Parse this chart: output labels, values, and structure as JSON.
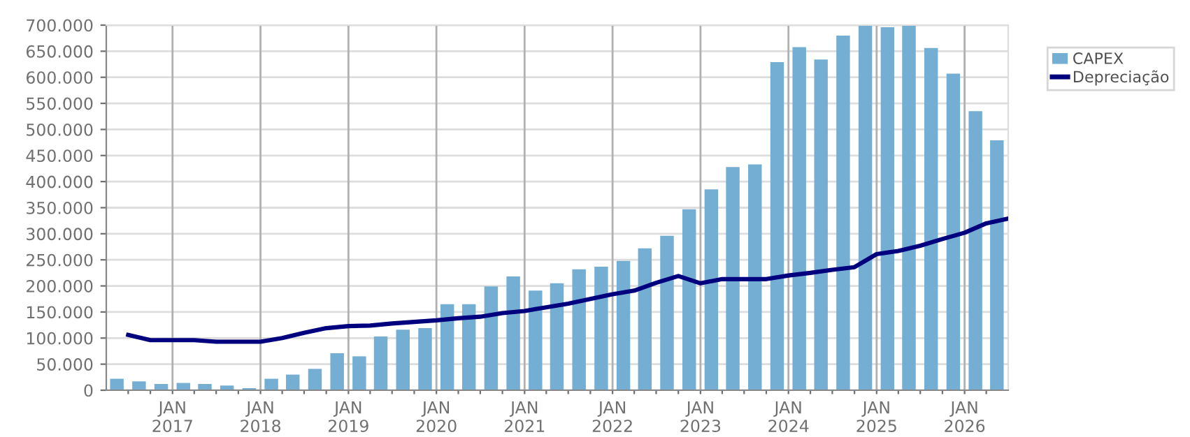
{
  "chart_data": {
    "type": "bar",
    "series": [
      {
        "name": "CAPEX",
        "color": "#74afd3",
        "x": [
          "2016-05-15",
          "2016-08-15",
          "2016-11-15",
          "2017-02-15",
          "2017-05-15",
          "2017-08-15",
          "2017-11-15",
          "2018-02-15",
          "2018-05-15",
          "2018-08-15",
          "2018-11-15",
          "2019-02-15",
          "2019-05-15",
          "2019-08-15",
          "2019-11-15",
          "2020-02-15",
          "2020-05-15",
          "2020-08-15",
          "2020-11-15",
          "2021-02-15",
          "2021-05-15",
          "2021-08-15",
          "2021-11-15",
          "2022-02-15",
          "2022-05-15",
          "2022-08-15",
          "2022-11-15",
          "2023-02-15",
          "2023-05-15",
          "2023-08-15",
          "2023-11-15",
          "2024-02-15",
          "2024-05-15",
          "2024-08-15",
          "2024-11-15",
          "2025-02-15",
          "2025-05-15",
          "2025-08-15",
          "2025-11-15",
          "2026-02-15",
          "2026-05-15"
        ],
        "values": [
          22000,
          17000,
          12000,
          14000,
          12000,
          9000,
          4000,
          22000,
          30000,
          41000,
          71000,
          65000,
          103000,
          116000,
          119000,
          165000,
          165000,
          199000,
          218000,
          191000,
          205000,
          232000,
          237000,
          248000,
          272000,
          296000,
          347000,
          385000,
          428000,
          433000,
          629000,
          658000,
          634000,
          680000,
          699000,
          696000,
          700000,
          656000,
          607000,
          535000,
          479000
        ]
      },
      {
        "name": "Depreciação",
        "type": "line",
        "color": "#00007f",
        "x": [
          "2016-07-01",
          "2016-10-01",
          "2017-01-01",
          "2017-04-01",
          "2017-07-01",
          "2017-10-01",
          "2018-01-01",
          "2018-04-01",
          "2018-07-01",
          "2018-10-01",
          "2019-01-01",
          "2019-04-01",
          "2019-07-01",
          "2019-10-01",
          "2020-01-01",
          "2020-04-01",
          "2020-07-01",
          "2020-10-01",
          "2021-01-01",
          "2021-04-01",
          "2021-07-01",
          "2021-10-01",
          "2022-01-01",
          "2022-04-01",
          "2022-07-01",
          "2022-10-01",
          "2023-01-01",
          "2023-04-01",
          "2023-07-01",
          "2023-10-01",
          "2024-01-01",
          "2024-04-01",
          "2024-07-01",
          "2024-10-01",
          "2025-01-01",
          "2025-04-01",
          "2025-07-01",
          "2025-10-01",
          "2026-01-01",
          "2026-04-01",
          "2026-07-01"
        ],
        "values": [
          106000,
          96000,
          96000,
          96000,
          93000,
          93000,
          93000,
          100000,
          110000,
          119000,
          123000,
          124000,
          128000,
          131000,
          134000,
          138000,
          141000,
          148000,
          152000,
          159000,
          166000,
          175000,
          184000,
          191000,
          206000,
          219000,
          205000,
          213000,
          213000,
          213000,
          220000,
          225000,
          231000,
          236000,
          261000,
          267000,
          277000,
          290000,
          302000,
          320000,
          329000
        ]
      }
    ],
    "xlim": [
      "2016-04-01",
      "2026-07-01"
    ],
    "xticks": [
      {
        "value": "2016-07-01",
        "label": null
      },
      {
        "value": "2016-10-01",
        "label": null
      },
      {
        "value": "2017-01-01",
        "label": "JAN\n2017"
      },
      {
        "value": "2017-04-01",
        "label": null
      },
      {
        "value": "2017-07-01",
        "label": null
      },
      {
        "value": "2017-10-01",
        "label": null
      },
      {
        "value": "2018-01-01",
        "label": "JAN\n2018"
      },
      {
        "value": "2018-04-01",
        "label": null
      },
      {
        "value": "2018-07-01",
        "label": null
      },
      {
        "value": "2018-10-01",
        "label": null
      },
      {
        "value": "2019-01-01",
        "label": "JAN\n2019"
      },
      {
        "value": "2019-04-01",
        "label": null
      },
      {
        "value": "2019-07-01",
        "label": null
      },
      {
        "value": "2019-10-01",
        "label": null
      },
      {
        "value": "2020-01-01",
        "label": "JAN\n2020"
      },
      {
        "value": "2020-04-01",
        "label": null
      },
      {
        "value": "2020-07-01",
        "label": null
      },
      {
        "value": "2020-10-01",
        "label": null
      },
      {
        "value": "2021-01-01",
        "label": "JAN\n2021"
      },
      {
        "value": "2021-04-01",
        "label": null
      },
      {
        "value": "2021-07-01",
        "label": null
      },
      {
        "value": "2021-10-01",
        "label": null
      },
      {
        "value": "2022-01-01",
        "label": "JAN\n2022"
      },
      {
        "value": "2022-04-01",
        "label": null
      },
      {
        "value": "2022-07-01",
        "label": null
      },
      {
        "value": "2022-10-01",
        "label": null
      },
      {
        "value": "2023-01-01",
        "label": "JAN\n2023"
      },
      {
        "value": "2023-04-01",
        "label": null
      },
      {
        "value": "2023-07-01",
        "label": null
      },
      {
        "value": "2023-10-01",
        "label": null
      },
      {
        "value": "2024-01-01",
        "label": "JAN\n2024"
      },
      {
        "value": "2024-04-01",
        "label": null
      },
      {
        "value": "2024-07-01",
        "label": null
      },
      {
        "value": "2024-10-01",
        "label": null
      },
      {
        "value": "2025-01-01",
        "label": "JAN\n2025"
      },
      {
        "value": "2025-04-01",
        "label": null
      },
      {
        "value": "2025-07-01",
        "label": null
      },
      {
        "value": "2025-10-01",
        "label": null
      },
      {
        "value": "2026-01-01",
        "label": "JAN\n2026"
      },
      {
        "value": "2026-04-01",
        "label": null
      }
    ],
    "ylim": [
      0,
      700000
    ],
    "yticks": [
      0,
      {
        "value": 50000,
        "label": "50.000"
      },
      {
        "value": 100000,
        "label": "100.000"
      },
      {
        "value": 150000,
        "label": "150.000"
      },
      {
        "value": 200000,
        "label": "200.000"
      },
      {
        "value": 250000,
        "label": "250.000"
      },
      {
        "value": 300000,
        "label": "300.000"
      },
      {
        "value": 350000,
        "label": "350.000"
      },
      {
        "value": 400000,
        "label": "400.000"
      },
      {
        "value": 450000,
        "label": "450.000"
      },
      {
        "value": 500000,
        "label": "500.000"
      },
      {
        "value": 550000,
        "label": "550.000"
      },
      {
        "value": 600000,
        "label": "600.000"
      },
      {
        "value": 650000,
        "label": "650.000"
      },
      {
        "value": 700000,
        "label": "700.000"
      }
    ],
    "grid": true,
    "legend": "right",
    "line_style": "solid",
    "marker": "none"
  }
}
